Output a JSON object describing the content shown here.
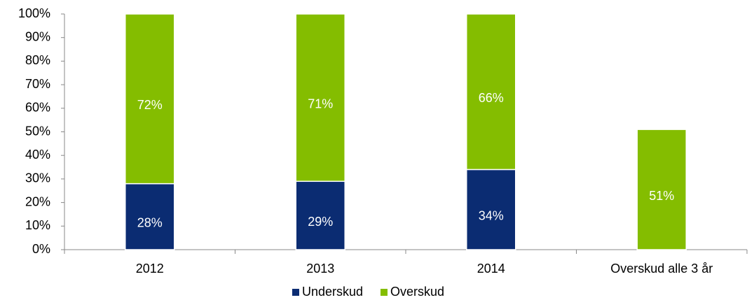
{
  "chart_data": {
    "type": "stacked_bar",
    "categories": [
      "2012",
      "2013",
      "2014",
      "Overskud alle 3 år"
    ],
    "series": [
      {
        "name": "Underskud",
        "color": "#0b2c72",
        "values": [
          28,
          29,
          34,
          null
        ],
        "value_labels": [
          "28%",
          "29%",
          "34%",
          null
        ]
      },
      {
        "name": "Overskud",
        "color": "#84bd00",
        "values": [
          72,
          71,
          66,
          51
        ],
        "value_labels": [
          "72%",
          "71%",
          "66%",
          "51%"
        ]
      }
    ],
    "ylim": [
      0,
      100
    ],
    "yticks": [
      {
        "value": 0,
        "label": "0%"
      },
      {
        "value": 10,
        "label": "10%"
      },
      {
        "value": 20,
        "label": "20%"
      },
      {
        "value": 30,
        "label": "30%"
      },
      {
        "value": 40,
        "label": "40%"
      },
      {
        "value": 50,
        "label": "50%"
      },
      {
        "value": 60,
        "label": "60%"
      },
      {
        "value": 70,
        "label": "70%"
      },
      {
        "value": 80,
        "label": "80%"
      },
      {
        "value": 90,
        "label": "90%"
      },
      {
        "value": 100,
        "label": "100%"
      }
    ],
    "legend": "bottom"
  }
}
